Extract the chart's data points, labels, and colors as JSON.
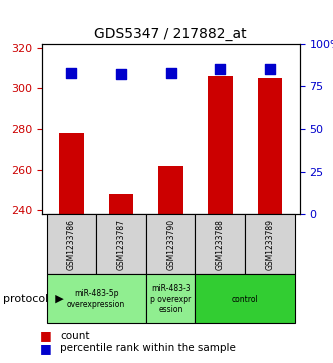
{
  "title": "GDS5347 / 217882_at",
  "samples": [
    "GSM1233786",
    "GSM1233787",
    "GSM1233790",
    "GSM1233788",
    "GSM1233789"
  ],
  "counts": [
    278,
    248,
    262,
    306,
    305
  ],
  "percentiles": [
    83,
    82,
    83,
    85,
    85
  ],
  "ylim_left": [
    238,
    322
  ],
  "ylim_right": [
    0,
    100
  ],
  "yticks_left": [
    240,
    260,
    280,
    300,
    320
  ],
  "ytick_labels_left": [
    "240",
    "260",
    "280",
    "300",
    "320"
  ],
  "ytick_labels_right": [
    "0",
    "25",
    "50",
    "75",
    "100%"
  ],
  "yticks_right": [
    0,
    25,
    50,
    75,
    100
  ],
  "bar_color": "#cc0000",
  "dot_color": "#0000cc",
  "grid_color": "#000000",
  "bg_color": "#ffffff",
  "label_area_color": "#d3d3d3",
  "protocol_groups": [
    {
      "label": "miR-483-5p\noverexpression",
      "samples": [
        0,
        1
      ],
      "color": "#90ee90"
    },
    {
      "label": "miR-483-3\np overexpr\nession",
      "samples": [
        2
      ],
      "color": "#90ee90"
    },
    {
      "label": "control",
      "samples": [
        3,
        4
      ],
      "color": "#32cd32"
    }
  ],
  "protocol_label": "protocol",
  "legend_count_label": "count",
  "legend_percentile_label": "percentile rank within the sample",
  "left_axis_color": "#cc0000",
  "right_axis_color": "#0000cc",
  "bar_width": 0.5,
  "dot_size": 60
}
